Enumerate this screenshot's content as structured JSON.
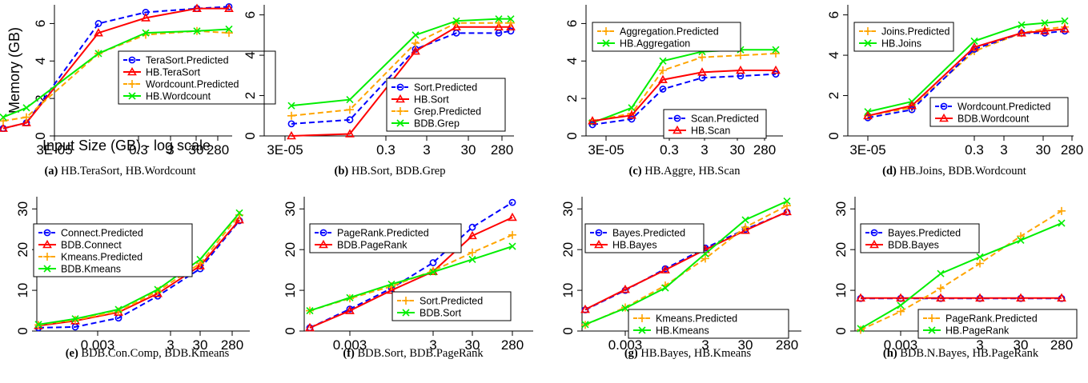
{
  "colors": {
    "blue": "#0000ff",
    "red": "#ff0000",
    "orange": "#ffa500",
    "green": "#00ee00"
  },
  "chart_data": [
    {
      "type": "line",
      "caption_label": "(a)",
      "caption_text": "HB.TeraSort, HB.Wordcount",
      "ylabel": "Memory (GB)",
      "xlabel": "Input Size (GB) - log scale",
      "x_ticks": [
        "3E-05",
        "0.3",
        "3",
        "30",
        "280"
      ],
      "y_ticks": [
        "0",
        "2",
        "4",
        "6"
      ],
      "ylim": [
        0,
        7
      ],
      "x": [
        "3E-05",
        "0.003",
        "0.3",
        "3",
        "30",
        "280"
      ],
      "legend_position": "right",
      "series": [
        {
          "name": "TeraSort.Predicted",
          "style": "predicted",
          "color": "blue",
          "values": [
            0.4,
            0.7,
            6.0,
            6.6,
            6.8,
            6.9
          ]
        },
        {
          "name": "HB.TeraSort",
          "style": "actual",
          "color": "red",
          "values": [
            0.4,
            0.7,
            5.5,
            6.3,
            6.8,
            6.8
          ]
        },
        {
          "name": "Wordcount.Predicted",
          "style": "predicted",
          "color": "orange",
          "values": [
            0.8,
            1.0,
            4.4,
            5.4,
            5.6,
            5.5
          ]
        },
        {
          "name": "HB.Wordcount",
          "style": "actual",
          "color": "green",
          "values": [
            1.0,
            1.5,
            4.4,
            5.5,
            5.6,
            5.7
          ]
        }
      ]
    },
    {
      "type": "line",
      "caption_label": "(b)",
      "caption_text": "HB.Sort, BDB.Grep",
      "ylabel": "",
      "xlabel": "",
      "x_ticks": [
        "3E-05",
        "0.3",
        "3",
        "30",
        "280"
      ],
      "y_ticks": [
        "0",
        "2",
        "4",
        "6"
      ],
      "ylim": [
        0,
        6.5
      ],
      "x": [
        "3E-05",
        "0.003",
        "0.3",
        "3",
        "30",
        "280"
      ],
      "legend_position": "bottom-right",
      "series": [
        {
          "name": "Sort.Predicted",
          "style": "predicted",
          "color": "blue",
          "values": [
            0.6,
            0.8,
            4.3,
            5.1,
            5.1,
            5.2
          ]
        },
        {
          "name": "HB.Sort",
          "style": "actual",
          "color": "red",
          "values": [
            0.0,
            0.1,
            4.2,
            5.4,
            5.4,
            5.4
          ]
        },
        {
          "name": "Grep.Predicted",
          "style": "predicted",
          "color": "orange",
          "values": [
            1.0,
            1.3,
            4.6,
            5.6,
            5.6,
            5.6
          ]
        },
        {
          "name": "BDB.Grep",
          "style": "actual",
          "color": "green",
          "values": [
            1.5,
            1.8,
            5.0,
            5.7,
            5.8,
            5.8
          ]
        }
      ]
    },
    {
      "type": "line",
      "caption_label": "(c)",
      "caption_text": "HB.Aggre, HB.Scan",
      "ylabel": "",
      "xlabel": "",
      "x_ticks": [
        "3E-05",
        "0.3",
        "3",
        "30",
        "280"
      ],
      "y_ticks": [
        "0",
        "2",
        "4",
        "6"
      ],
      "ylim": [
        0,
        7
      ],
      "x": [
        "3E-05",
        "0.003",
        "0.3",
        "3",
        "30",
        "280"
      ],
      "legend_position": "top-left and bottom-right",
      "series": [
        {
          "name": "Aggregation.Predicted",
          "style": "predicted",
          "color": "orange",
          "legend": 0,
          "values": [
            0.8,
            1.2,
            3.5,
            4.2,
            4.3,
            4.4
          ]
        },
        {
          "name": "HB.Aggregation",
          "style": "actual",
          "color": "green",
          "legend": 0,
          "values": [
            0.7,
            1.5,
            4.0,
            4.5,
            4.6,
            4.6
          ]
        },
        {
          "name": "Scan.Predicted",
          "style": "predicted",
          "color": "blue",
          "legend": 1,
          "values": [
            0.6,
            0.9,
            2.5,
            3.1,
            3.2,
            3.3
          ]
        },
        {
          "name": "HB.Scan",
          "style": "actual",
          "color": "red",
          "legend": 1,
          "values": [
            0.8,
            1.1,
            3.0,
            3.4,
            3.5,
            3.5
          ]
        }
      ]
    },
    {
      "type": "line",
      "caption_label": "(d)",
      "caption_text": "HB.Joins, BDB.Wordcount",
      "ylabel": "",
      "xlabel": "",
      "x_ticks": [
        "3E-05",
        "0.3",
        "3",
        "30",
        "280"
      ],
      "y_ticks": [
        "0",
        "2",
        "4",
        "6"
      ],
      "ylim": [
        0,
        6.5
      ],
      "x": [
        "3E-05",
        "0.003",
        "0.3",
        "3",
        "30",
        "280"
      ],
      "legend_position": "top-left and bottom-right",
      "series": [
        {
          "name": "Joins.Predicted",
          "style": "predicted",
          "color": "orange",
          "legend": 0,
          "values": [
            1.0,
            1.4,
            4.2,
            5.1,
            5.3,
            5.4
          ]
        },
        {
          "name": "HB.Joins",
          "style": "actual",
          "color": "green",
          "legend": 0,
          "values": [
            1.2,
            1.7,
            4.7,
            5.5,
            5.6,
            5.7
          ]
        },
        {
          "name": "Wordcount.Predicted",
          "style": "predicted",
          "color": "blue",
          "legend": 1,
          "values": [
            0.9,
            1.3,
            4.3,
            5.1,
            5.1,
            5.2
          ]
        },
        {
          "name": "BDB.Wordcount",
          "style": "actual",
          "color": "red",
          "legend": 1,
          "values": [
            1.0,
            1.5,
            4.4,
            5.1,
            5.2,
            5.3
          ]
        }
      ]
    },
    {
      "type": "line",
      "caption_label": "(e)",
      "caption_text": "BDB.Con.Comp, BDB.Kmeans",
      "ylabel": "",
      "xlabel": "",
      "x_ticks": [
        "0.003",
        "3",
        "30",
        "280"
      ],
      "y_ticks": [
        "0",
        "10",
        "20",
        "30"
      ],
      "ylim": [
        0,
        33
      ],
      "x": [
        "3E-05",
        "0.003",
        "0.3",
        "3",
        "30",
        "280"
      ],
      "legend_position": "top-left",
      "series": [
        {
          "name": "Connect.Predicted",
          "style": "predicted",
          "color": "blue",
          "values": [
            0.8,
            1.0,
            3.2,
            8.6,
            15.3,
            27.1
          ]
        },
        {
          "name": "BDB.Connect",
          "style": "actual",
          "color": "red",
          "values": [
            1.3,
            2.5,
            4.6,
            9.2,
            16.0,
            27.3
          ]
        },
        {
          "name": "Kmeans.Predicted",
          "style": "predicted",
          "color": "orange",
          "values": [
            1.5,
            2.7,
            4.8,
            9.8,
            16.6,
            28.5
          ]
        },
        {
          "name": "BDB.Kmeans",
          "style": "actual",
          "color": "green",
          "values": [
            1.6,
            3.0,
            5.3,
            10.2,
            17.6,
            29.0
          ]
        }
      ]
    },
    {
      "type": "line",
      "caption_label": "(f)",
      "caption_text": "BDB.Sort, BDB.PageRank",
      "ylabel": "",
      "xlabel": "",
      "x_ticks": [
        "0.003",
        "3",
        "30",
        "280"
      ],
      "y_ticks": [
        "0",
        "10",
        "20",
        "30"
      ],
      "ylim": [
        0,
        33
      ],
      "x": [
        "3E-05",
        "0.003",
        "0.3",
        "3",
        "30",
        "280"
      ],
      "legend_position": "top-left and bottom-right",
      "series": [
        {
          "name": "PageRank.Predicted",
          "style": "predicted",
          "color": "blue",
          "legend": 0,
          "values": [
            0.8,
            5.4,
            10.5,
            16.8,
            25.5,
            31.6
          ]
        },
        {
          "name": "BDB.PageRank",
          "style": "actual",
          "color": "red",
          "legend": 0,
          "values": [
            0.8,
            5.0,
            10.0,
            14.6,
            23.4,
            27.9
          ]
        },
        {
          "name": "Sort.Predicted",
          "style": "predicted",
          "color": "orange",
          "legend": 1,
          "values": [
            5.0,
            8.0,
            11.0,
            14.8,
            19.3,
            23.6
          ]
        },
        {
          "name": "BDB.Sort",
          "style": "actual",
          "color": "green",
          "legend": 1,
          "values": [
            5.0,
            8.2,
            11.5,
            14.5,
            17.6,
            20.8
          ]
        }
      ]
    },
    {
      "type": "line",
      "caption_label": "(g)",
      "caption_text": "HB.Bayes, HB.Kmeans",
      "ylabel": "",
      "xlabel": "",
      "x_ticks": [
        "0.003",
        "3",
        "30",
        "280"
      ],
      "y_ticks": [
        "0",
        "10",
        "20",
        "30"
      ],
      "ylim": [
        0,
        33
      ],
      "x": [
        "3E-05",
        "0.003",
        "0.3",
        "3",
        "30",
        "280"
      ],
      "legend_position": "top-left and bottom-right",
      "series": [
        {
          "name": "Bayes.Predicted",
          "style": "predicted",
          "color": "blue",
          "legend": 0,
          "values": [
            5.2,
            10.0,
            15.3,
            20.4,
            25.0,
            29.2
          ]
        },
        {
          "name": "HB.Bayes",
          "style": "actual",
          "color": "red",
          "legend": 0,
          "values": [
            5.3,
            10.2,
            15.0,
            20.0,
            24.7,
            29.3
          ]
        },
        {
          "name": "Kmeans.Predicted",
          "style": "predicted",
          "color": "orange",
          "legend": 1,
          "values": [
            1.5,
            5.8,
            11.2,
            17.8,
            25.5,
            30.8
          ]
        },
        {
          "name": "HB.Kmeans",
          "style": "actual",
          "color": "green",
          "legend": 1,
          "values": [
            1.6,
            5.6,
            10.6,
            19.0,
            27.3,
            31.9
          ]
        }
      ]
    },
    {
      "type": "line",
      "caption_label": "(h)",
      "caption_text": "BDB.N.Bayes, HB.PageRank",
      "ylabel": "",
      "xlabel": "",
      "x_ticks": [
        "0.003",
        "3",
        "30",
        "280"
      ],
      "y_ticks": [
        "0",
        "10",
        "20",
        "30"
      ],
      "ylim": [
        0,
        33
      ],
      "x": [
        "3E-05",
        "0.003",
        "0.3",
        "3",
        "30",
        "280"
      ],
      "legend_position": "top-left and bottom-right",
      "series": [
        {
          "name": "Bayes.Predicted",
          "style": "predicted",
          "color": "blue",
          "legend": 0,
          "values": [
            8.0,
            8.0,
            8.0,
            8.0,
            8.0,
            8.0
          ]
        },
        {
          "name": "BDB.Bayes",
          "style": "actual",
          "color": "red",
          "legend": 0,
          "values": [
            8.1,
            8.1,
            8.1,
            8.1,
            8.1,
            8.1
          ]
        },
        {
          "name": "PageRank.Predicted",
          "style": "predicted",
          "color": "orange",
          "legend": 1,
          "values": [
            0.3,
            4.8,
            10.5,
            16.6,
            23.3,
            29.5
          ]
        },
        {
          "name": "HB.PageRank",
          "style": "actual",
          "color": "green",
          "legend": 1,
          "values": [
            0.6,
            6.3,
            14.1,
            18.2,
            22.3,
            26.5
          ]
        }
      ]
    }
  ]
}
